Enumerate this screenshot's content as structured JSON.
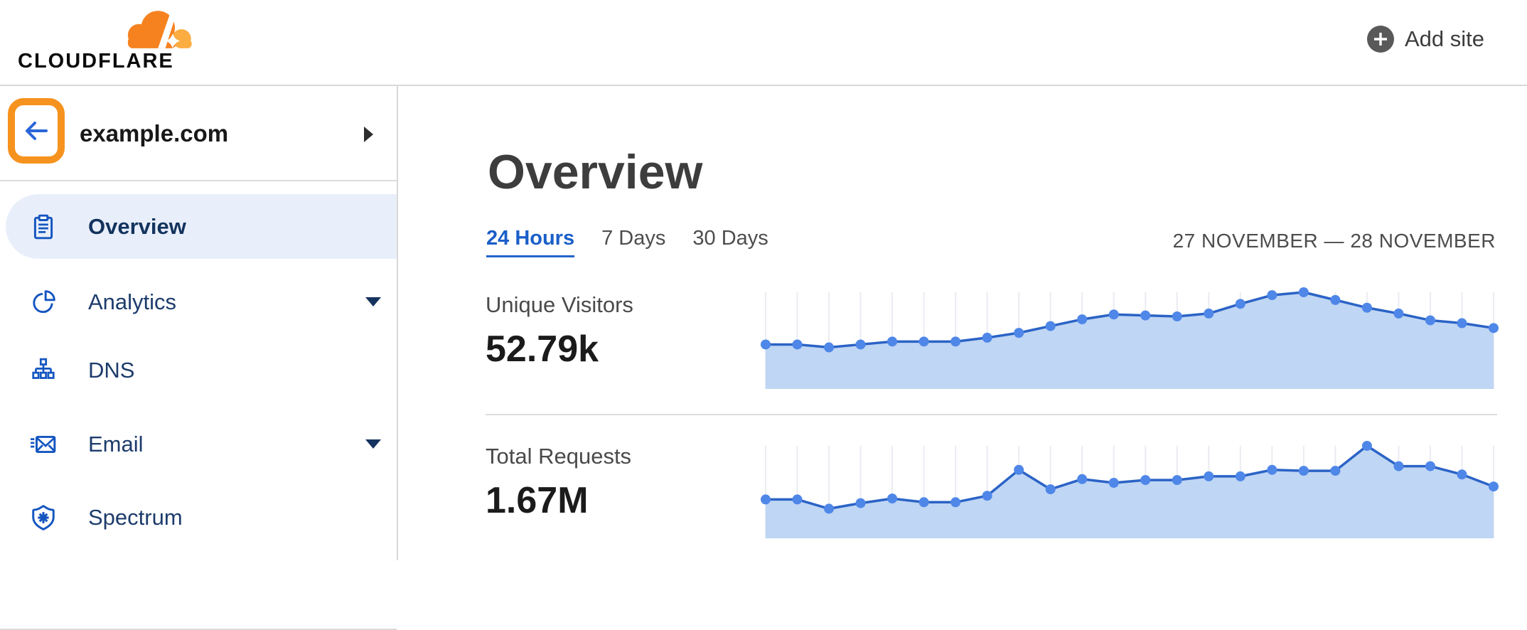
{
  "header": {
    "brand": "CLOUDFLARE",
    "add_site_label": "Add site"
  },
  "sidebar": {
    "site_name": "example.com",
    "items": [
      {
        "label": "Overview",
        "icon": "clipboard-icon",
        "active": true,
        "has_caret": false
      },
      {
        "label": "Analytics",
        "icon": "pie-chart-icon",
        "active": false,
        "has_caret": true
      },
      {
        "label": "DNS",
        "icon": "network-icon",
        "active": false,
        "has_caret": false
      },
      {
        "label": "Email",
        "icon": "envelope-icon",
        "active": false,
        "has_caret": true
      },
      {
        "label": "Spectrum",
        "icon": "shield-icon",
        "active": false,
        "has_caret": false
      }
    ]
  },
  "main": {
    "title": "Overview",
    "tabs": [
      {
        "label": "24 Hours",
        "active": true
      },
      {
        "label": "7 Days",
        "active": false
      },
      {
        "label": "30 Days",
        "active": false
      }
    ],
    "date_range": "27 NOVEMBER — 28 NOVEMBER",
    "metrics": [
      {
        "label": "Unique Visitors",
        "value": "52.79k"
      },
      {
        "label": "Total Requests",
        "value": "1.67M"
      }
    ]
  },
  "colors": {
    "brand_orange": "#f6821f",
    "brand_orange_light": "#fbad41",
    "annotation_orange": "#f6921e",
    "link_blue": "#1a5fc8",
    "nav_text": "#1d3c6c",
    "chart_line": "#2b63c6",
    "chart_dot": "#4f87e8",
    "chart_fill": "#bfd6f4",
    "chart_grid": "#ebecf2",
    "divider": "#dcdcdc"
  },
  "chart_data": [
    {
      "type": "area",
      "title": "Unique Visitors",
      "displayed_total": "52.79k",
      "x_range_label": "27 NOVEMBER — 28 NOVEMBER",
      "points": 24,
      "x_unit": "hours (24-hour sparkline, no axis labels shown)",
      "y_axis": "unlabeled; values are relative heights 0-1 of peak",
      "relative_heights": [
        0.46,
        0.46,
        0.43,
        0.46,
        0.49,
        0.49,
        0.49,
        0.53,
        0.58,
        0.65,
        0.72,
        0.77,
        0.76,
        0.75,
        0.78,
        0.88,
        0.97,
        1.0,
        0.92,
        0.84,
        0.78,
        0.71,
        0.68,
        0.63
      ],
      "grid": "vertical gridlines at each point",
      "legend": "none"
    },
    {
      "type": "area",
      "title": "Total Requests",
      "displayed_total": "1.67M",
      "x_range_label": "27 NOVEMBER — 28 NOVEMBER",
      "points": 24,
      "x_unit": "hours (24-hour sparkline, no axis labels shown)",
      "y_axis": "unlabeled; values are relative heights 0-1 of peak",
      "relative_heights": [
        0.42,
        0.42,
        0.32,
        0.38,
        0.43,
        0.39,
        0.39,
        0.46,
        0.74,
        0.53,
        0.64,
        0.6,
        0.63,
        0.63,
        0.67,
        0.67,
        0.74,
        0.73,
        0.73,
        1.0,
        0.78,
        0.78,
        0.69,
        0.56
      ],
      "grid": "vertical gridlines at each point",
      "legend": "none"
    }
  ]
}
